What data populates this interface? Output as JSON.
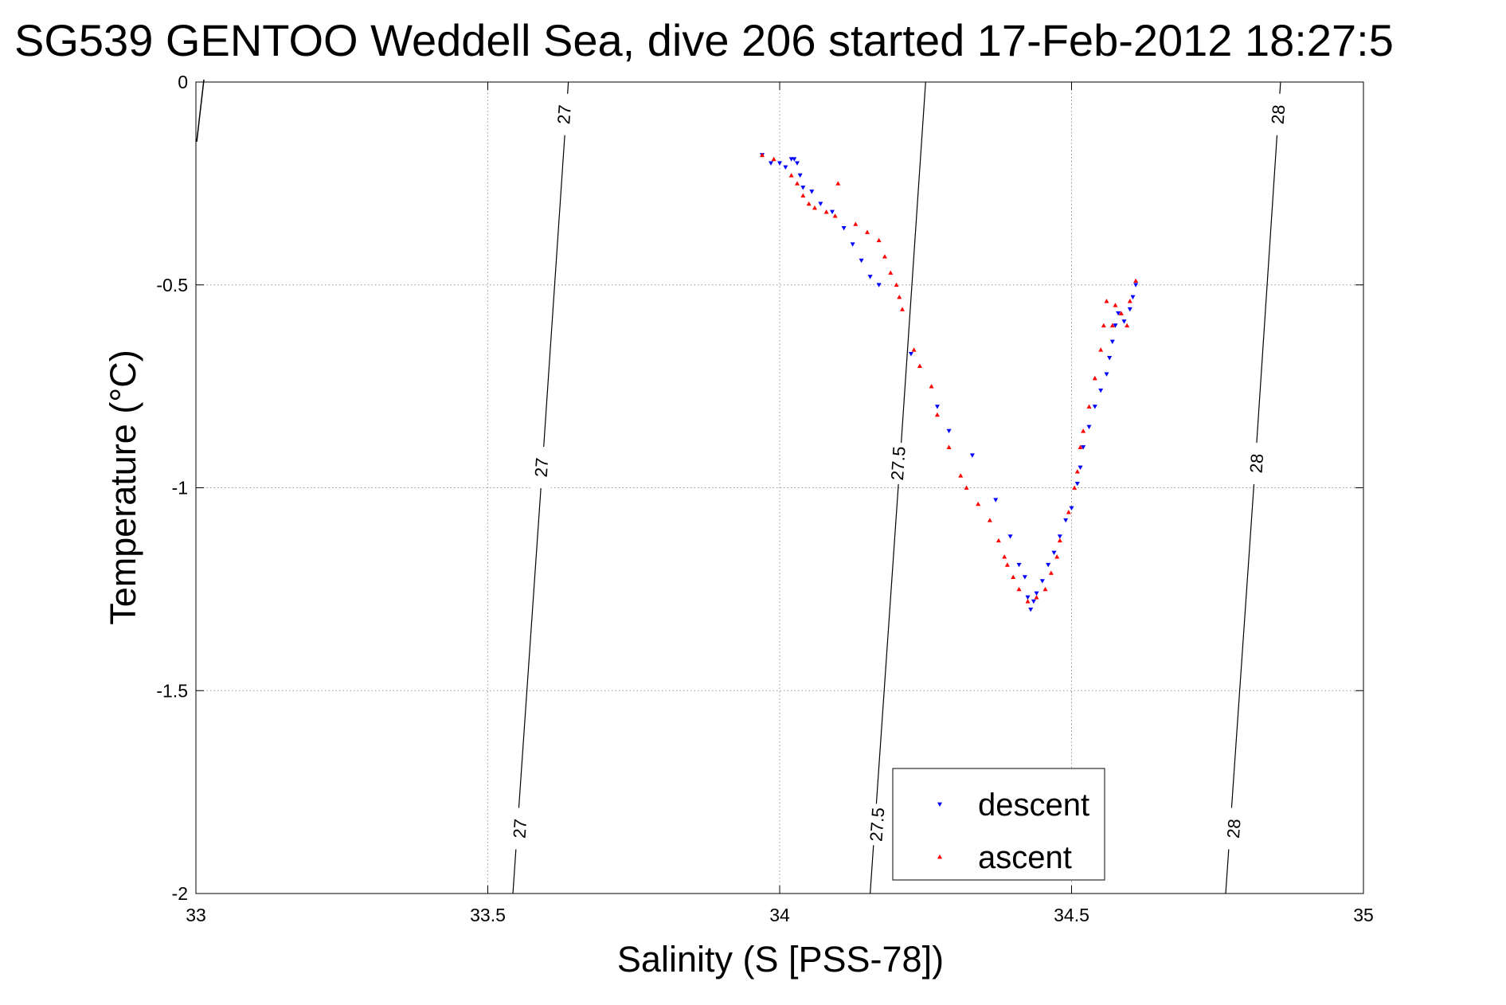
{
  "chart_data": {
    "type": "scatter",
    "title": "SG539 GENTOO Weddell Sea, dive 206 started 17-Feb-2012 18:27:5",
    "xlabel": "Salinity (S [PSS-78])",
    "ylabel": "Temperature (°C)",
    "xlim": [
      33,
      35
    ],
    "ylim": [
      -2,
      0
    ],
    "xticks": [
      33,
      33.5,
      34,
      34.5,
      35
    ],
    "xtick_labels": [
      "33",
      "33.5",
      "34",
      "34.5",
      "35"
    ],
    "yticks": [
      0,
      -0.5,
      -1,
      -1.5,
      -2
    ],
    "ytick_labels": [
      "0",
      "-0.5",
      "-1",
      "-1.5",
      "-2"
    ],
    "grid": true,
    "legend_position": "bottom-center",
    "density_contours": [
      {
        "level": "27",
        "points": [
          [
            33.543,
            -2.0
          ],
          [
            33.591,
            -1.0
          ],
          [
            33.638,
            0.0
          ]
        ],
        "label_points": [
          [
            33.555,
            -1.84
          ],
          [
            33.592,
            -0.95
          ],
          [
            33.631,
            -0.08
          ]
        ]
      },
      {
        "level": "27.5",
        "points": [
          [
            34.155,
            -2.0
          ],
          [
            34.203,
            -1.0
          ],
          [
            34.25,
            0.0
          ]
        ],
        "label_points": [
          [
            34.167,
            -1.83
          ],
          [
            34.203,
            -0.94
          ],
          [
            null,
            null
          ]
        ]
      },
      {
        "level": "28",
        "points": [
          [
            34.764,
            -2.0
          ],
          [
            34.812,
            -1.0
          ],
          [
            34.858,
            0.0
          ]
        ],
        "label_points": [
          [
            34.778,
            -1.84
          ],
          [
            34.817,
            -0.94
          ],
          [
            34.854,
            -0.08
          ]
        ]
      }
    ],
    "series": [
      {
        "name": "descent",
        "color": "#0000ff",
        "marker": "triangle-down",
        "points": [
          [
            33.97,
            -0.18
          ],
          [
            33.985,
            -0.2
          ],
          [
            34.0,
            -0.2
          ],
          [
            34.01,
            -0.21
          ],
          [
            34.02,
            -0.19
          ],
          [
            34.025,
            -0.19
          ],
          [
            34.03,
            -0.2
          ],
          [
            34.035,
            -0.23
          ],
          [
            34.04,
            -0.26
          ],
          [
            34.055,
            -0.27
          ],
          [
            34.07,
            -0.3
          ],
          [
            34.09,
            -0.32
          ],
          [
            34.11,
            -0.36
          ],
          [
            34.125,
            -0.4
          ],
          [
            34.14,
            -0.44
          ],
          [
            34.155,
            -0.48
          ],
          [
            34.17,
            -0.5
          ],
          [
            34.225,
            -0.67
          ],
          [
            34.27,
            -0.8
          ],
          [
            34.29,
            -0.86
          ],
          [
            34.33,
            -0.92
          ],
          [
            34.37,
            -1.03
          ],
          [
            34.395,
            -1.12
          ],
          [
            34.41,
            -1.19
          ],
          [
            34.42,
            -1.22
          ],
          [
            34.425,
            -1.27
          ],
          [
            34.43,
            -1.3
          ],
          [
            34.435,
            -1.28
          ],
          [
            34.44,
            -1.26
          ],
          [
            34.45,
            -1.23
          ],
          [
            34.46,
            -1.19
          ],
          [
            34.47,
            -1.16
          ],
          [
            34.48,
            -1.12
          ],
          [
            34.49,
            -1.08
          ],
          [
            34.5,
            -1.05
          ],
          [
            34.51,
            -0.99
          ],
          [
            34.515,
            -0.95
          ],
          [
            34.52,
            -0.9
          ],
          [
            34.53,
            -0.85
          ],
          [
            34.54,
            -0.8
          ],
          [
            34.55,
            -0.76
          ],
          [
            34.56,
            -0.72
          ],
          [
            34.565,
            -0.68
          ],
          [
            34.57,
            -0.64
          ],
          [
            34.575,
            -0.6
          ],
          [
            34.58,
            -0.57
          ],
          [
            34.59,
            -0.59
          ],
          [
            34.6,
            -0.56
          ],
          [
            34.605,
            -0.53
          ],
          [
            34.61,
            -0.5
          ]
        ]
      },
      {
        "name": "ascent",
        "color": "#ff0000",
        "marker": "triangle-up",
        "points": [
          [
            33.97,
            -0.18
          ],
          [
            33.99,
            -0.19
          ],
          [
            34.02,
            -0.23
          ],
          [
            34.03,
            -0.25
          ],
          [
            34.04,
            -0.28
          ],
          [
            34.05,
            -0.3
          ],
          [
            34.06,
            -0.31
          ],
          [
            34.08,
            -0.32
          ],
          [
            34.095,
            -0.33
          ],
          [
            34.1,
            -0.25
          ],
          [
            34.13,
            -0.35
          ],
          [
            34.15,
            -0.37
          ],
          [
            34.17,
            -0.39
          ],
          [
            34.18,
            -0.43
          ],
          [
            34.19,
            -0.47
          ],
          [
            34.2,
            -0.5
          ],
          [
            34.205,
            -0.53
          ],
          [
            34.21,
            -0.56
          ],
          [
            34.23,
            -0.66
          ],
          [
            34.24,
            -0.7
          ],
          [
            34.26,
            -0.75
          ],
          [
            34.27,
            -0.82
          ],
          [
            34.29,
            -0.9
          ],
          [
            34.31,
            -0.97
          ],
          [
            34.32,
            -1.0
          ],
          [
            34.34,
            -1.04
          ],
          [
            34.36,
            -1.08
          ],
          [
            34.375,
            -1.13
          ],
          [
            34.385,
            -1.17
          ],
          [
            34.39,
            -1.19
          ],
          [
            34.4,
            -1.22
          ],
          [
            34.41,
            -1.25
          ],
          [
            34.425,
            -1.28
          ],
          [
            34.44,
            -1.27
          ],
          [
            34.455,
            -1.25
          ],
          [
            34.465,
            -1.21
          ],
          [
            34.475,
            -1.17
          ],
          [
            34.48,
            -1.13
          ],
          [
            34.495,
            -1.06
          ],
          [
            34.505,
            -1.0
          ],
          [
            34.51,
            -0.96
          ],
          [
            34.515,
            -0.9
          ],
          [
            34.52,
            -0.86
          ],
          [
            34.53,
            -0.8
          ],
          [
            34.54,
            -0.73
          ],
          [
            34.55,
            -0.66
          ],
          [
            34.555,
            -0.6
          ],
          [
            34.56,
            -0.54
          ],
          [
            34.57,
            -0.6
          ],
          [
            34.575,
            -0.55
          ],
          [
            34.585,
            -0.57
          ],
          [
            34.595,
            -0.6
          ],
          [
            34.6,
            -0.54
          ],
          [
            34.61,
            -0.49
          ]
        ]
      }
    ]
  }
}
